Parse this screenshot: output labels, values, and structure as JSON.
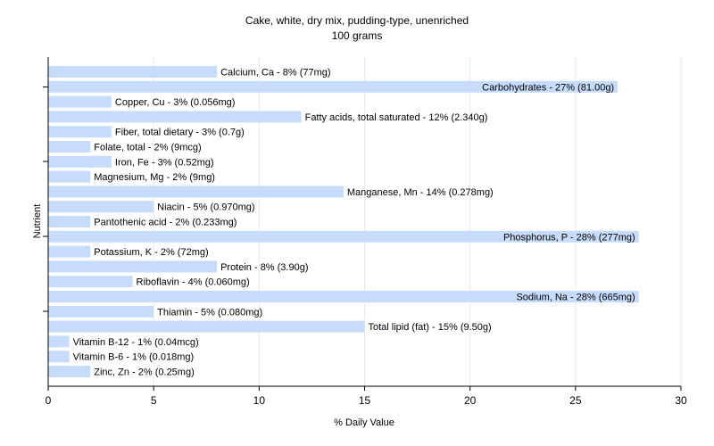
{
  "chart_data": {
    "type": "bar",
    "orientation": "horizontal",
    "title": "Cake, white, dry mix, pudding-type, unenriched",
    "subtitle": "100 grams",
    "xlabel": "% Daily Value",
    "ylabel": "Nutrient",
    "xlim": [
      0,
      30
    ],
    "xticks": [
      0,
      5,
      10,
      15,
      20,
      25,
      30
    ],
    "grid": true,
    "bar_color": "#c6dcfa",
    "categories": [
      "Calcium, Ca",
      "Carbohydrates",
      "Copper, Cu",
      "Fatty acids, total saturated",
      "Fiber, total dietary",
      "Folate, total",
      "Iron, Fe",
      "Magnesium, Mg",
      "Manganese, Mn",
      "Niacin",
      "Pantothenic acid",
      "Phosphorus, P",
      "Potassium, K",
      "Protein",
      "Riboflavin",
      "Sodium, Na",
      "Thiamin",
      "Total lipid (fat)",
      "Vitamin B-12",
      "Vitamin B-6",
      "Zinc, Zn"
    ],
    "values": [
      8,
      27,
      3,
      12,
      3,
      2,
      3,
      2,
      14,
      5,
      2,
      28,
      2,
      8,
      4,
      28,
      5,
      15,
      1,
      1,
      2
    ],
    "labels": [
      "Calcium, Ca - 8% (77mg)",
      "Carbohydrates - 27% (81.00g)",
      "Copper, Cu - 3% (0.056mg)",
      "Fatty acids, total saturated - 12% (2.340g)",
      "Fiber, total dietary - 3% (0.7g)",
      "Folate, total - 2% (9mcg)",
      "Iron, Fe - 3% (0.52mg)",
      "Magnesium, Mg - 2% (9mg)",
      "Manganese, Mn - 14% (0.278mg)",
      "Niacin - 5% (0.970mg)",
      "Pantothenic acid - 2% (0.233mg)",
      "Phosphorus, P - 28% (277mg)",
      "Potassium, K - 2% (72mg)",
      "Protein - 8% (3.90g)",
      "Riboflavin - 4% (0.060mg)",
      "Sodium, Na - 28% (665mg)",
      "Thiamin - 5% (0.080mg)",
      "Total lipid (fat) - 15% (9.50g)",
      "Vitamin B-12 - 1% (0.04mcg)",
      "Vitamin B-6 - 1% (0.018mg)",
      "Zinc, Zn - 2% (0.25mg)"
    ]
  }
}
